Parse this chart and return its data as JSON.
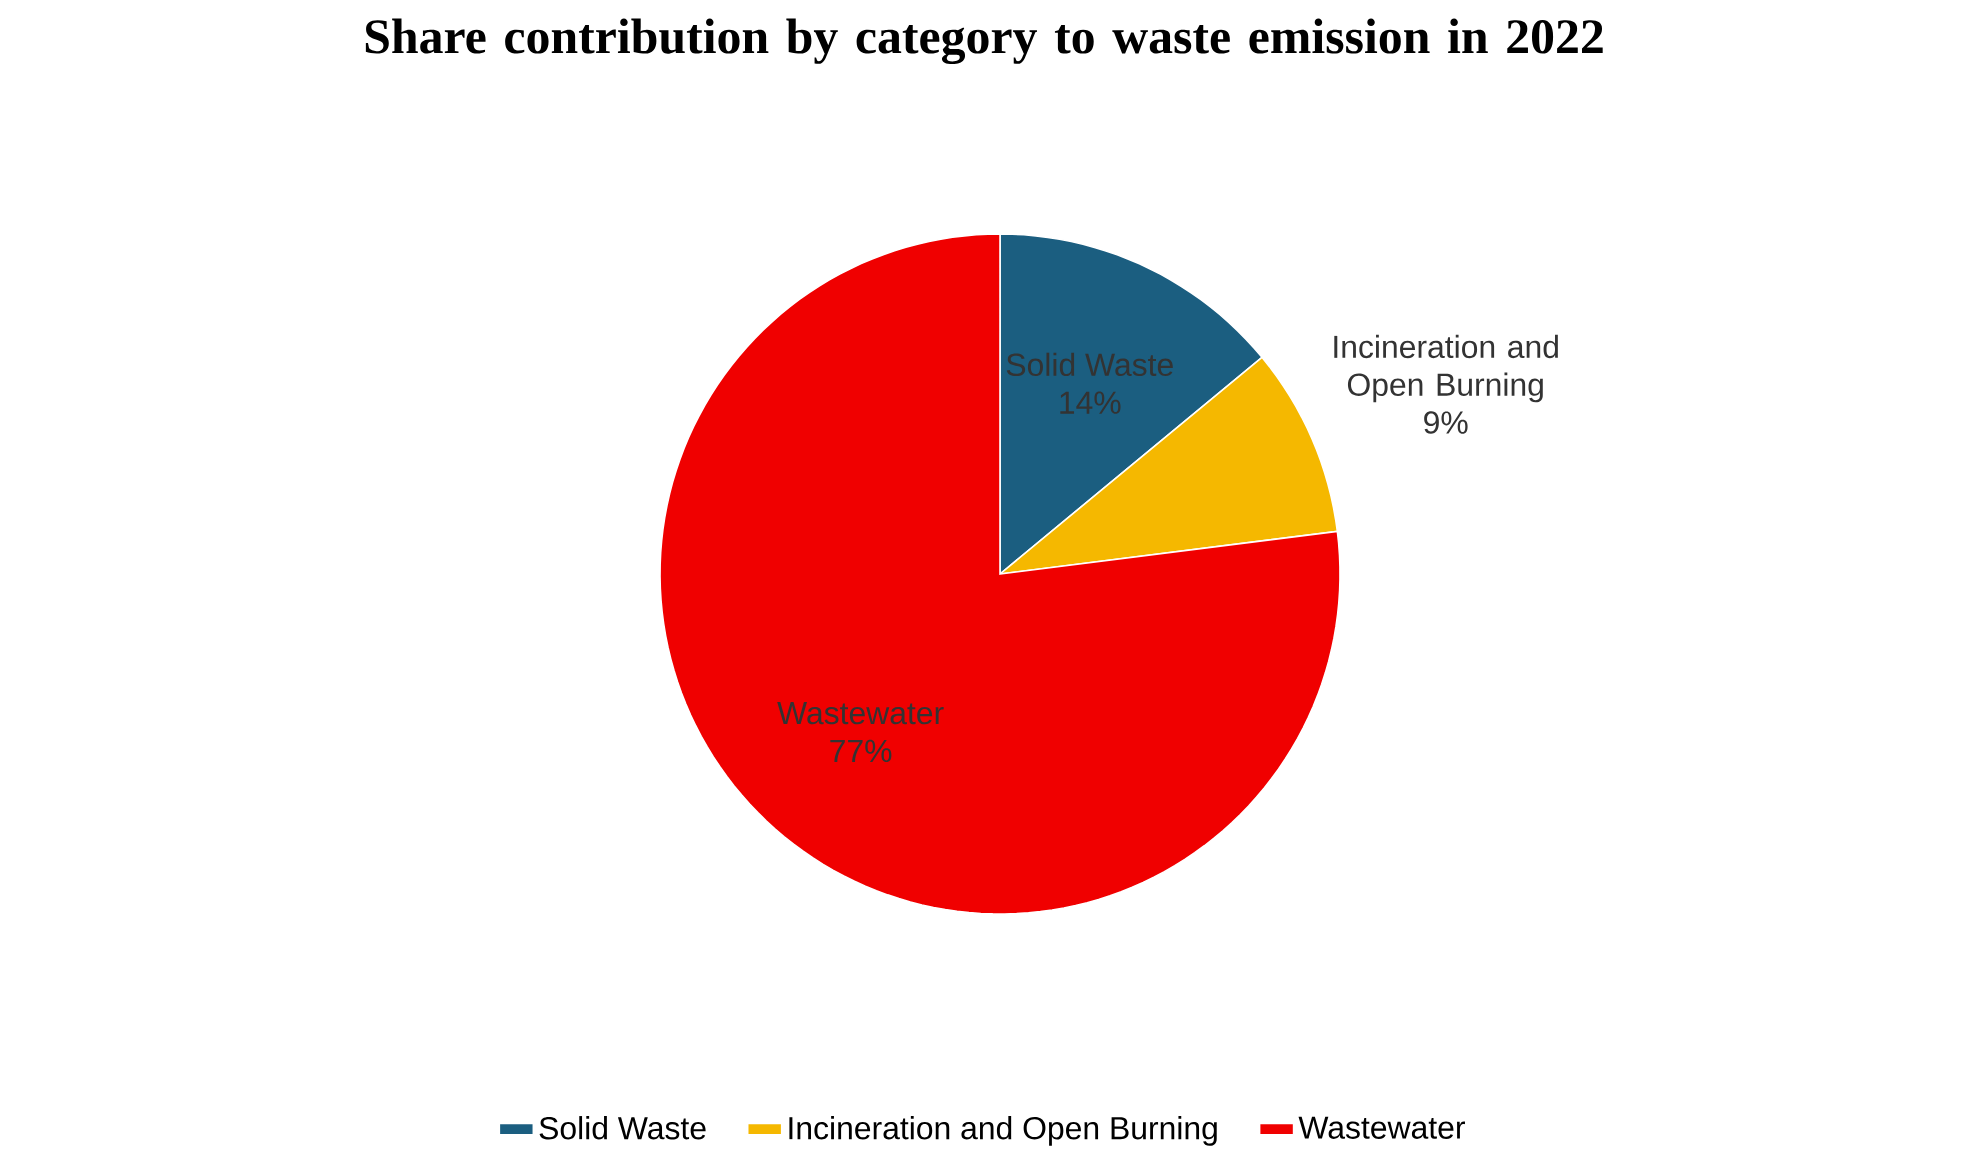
{
  "chart_data": {
    "type": "pie",
    "title": "Share contribution by category to waste emission in 2022",
    "categories": [
      "Solid Waste",
      "Incineration and Open Burning",
      "Wastewater"
    ],
    "values": [
      14,
      9,
      77
    ],
    "value_labels": [
      "14%",
      "9%",
      "77%"
    ],
    "colors": [
      "#1b5e80",
      "#f5b800",
      "#f00000"
    ],
    "data_labels": true,
    "legend": "bottom"
  }
}
